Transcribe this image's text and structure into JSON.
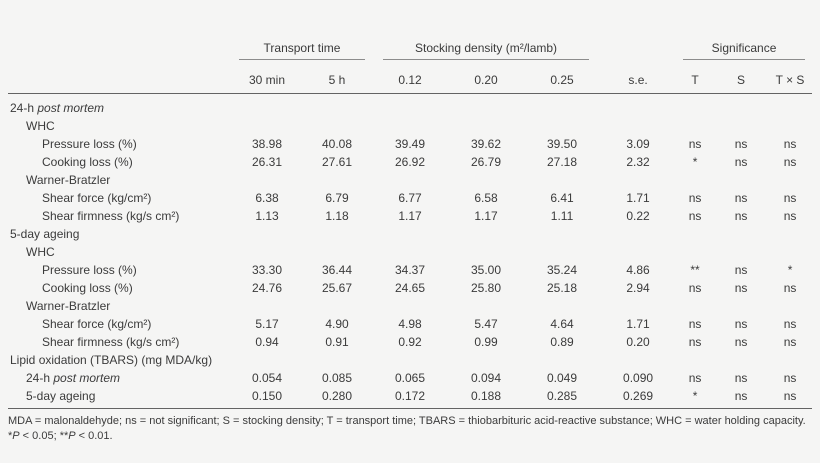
{
  "header": {
    "transport_time": "Transport time",
    "stocking_density": "Stocking density (m²/lamb)",
    "significance": "Significance",
    "se": "s.e.",
    "transport_levels": [
      "30 min",
      "5 h"
    ],
    "density_levels": [
      "0.12",
      "0.20",
      "0.25"
    ],
    "sig_levels": [
      "T",
      "S",
      "T × S"
    ]
  },
  "rows": [
    {
      "label_prefix": "24-h ",
      "label_italic": "post mortem",
      "indent": 0
    },
    {
      "label": "WHC",
      "indent": 1
    },
    {
      "label": "Pressure loss (%)",
      "indent": 2,
      "values": [
        "38.98",
        "40.08",
        "39.49",
        "39.62",
        "39.50",
        "3.09",
        "ns",
        "ns",
        "ns"
      ]
    },
    {
      "label": "Cooking loss (%)",
      "indent": 2,
      "values": [
        "26.31",
        "27.61",
        "26.92",
        "26.79",
        "27.18",
        "2.32",
        "*",
        "ns",
        "ns"
      ]
    },
    {
      "label": "Warner-Bratzler",
      "indent": 1
    },
    {
      "label": "Shear force (kg/cm²)",
      "indent": 2,
      "values": [
        "6.38",
        "6.79",
        "6.77",
        "6.58",
        "6.41",
        "1.71",
        "ns",
        "ns",
        "ns"
      ]
    },
    {
      "label": "Shear firmness (kg/s cm²)",
      "indent": 2,
      "values": [
        "1.13",
        "1.18",
        "1.17",
        "1.17",
        "1.11",
        "0.22",
        "ns",
        "ns",
        "ns"
      ]
    },
    {
      "label": "5-day ageing",
      "indent": 0
    },
    {
      "label": "WHC",
      "indent": 1
    },
    {
      "label": "Pressure loss (%)",
      "indent": 2,
      "values": [
        "33.30",
        "36.44",
        "34.37",
        "35.00",
        "35.24",
        "4.86",
        "**",
        "ns",
        "*"
      ]
    },
    {
      "label": "Cooking loss (%)",
      "indent": 2,
      "values": [
        "24.76",
        "25.67",
        "24.65",
        "25.80",
        "25.18",
        "2.94",
        "ns",
        "ns",
        "ns"
      ]
    },
    {
      "label": "Warner-Bratzler",
      "indent": 1
    },
    {
      "label": "Shear force (kg/cm²)",
      "indent": 2,
      "values": [
        "5.17",
        "4.90",
        "4.98",
        "5.47",
        "4.64",
        "1.71",
        "ns",
        "ns",
        "ns"
      ]
    },
    {
      "label": "Shear firmness (kg/s cm²)",
      "indent": 2,
      "values": [
        "0.94",
        "0.91",
        "0.92",
        "0.99",
        "0.89",
        "0.20",
        "ns",
        "ns",
        "ns"
      ]
    },
    {
      "label": "Lipid oxidation (TBARS) (mg MDA/kg)",
      "indent": 0
    },
    {
      "label_prefix": "24-h ",
      "label_italic": "post mortem",
      "indent": 1,
      "values": [
        "0.054",
        "0.085",
        "0.065",
        "0.094",
        "0.049",
        "0.090",
        "ns",
        "ns",
        "ns"
      ]
    },
    {
      "label": "5-day ageing",
      "indent": 1,
      "values": [
        "0.150",
        "0.280",
        "0.172",
        "0.188",
        "0.285",
        "0.269",
        "*",
        "ns",
        "ns"
      ]
    }
  ],
  "footnotes": {
    "abbrev": "MDA = malonaldehyde; ns = not significant; S = stocking density; T = transport time; TBARS = thiobarbituric acid-reactive substance; WHC = water holding capacity.",
    "sig": {
      "star1": "*",
      "p1": "P",
      "c1": " < 0.05; ",
      "star2": "**",
      "p2": "P",
      "c2": " < 0.01."
    }
  }
}
